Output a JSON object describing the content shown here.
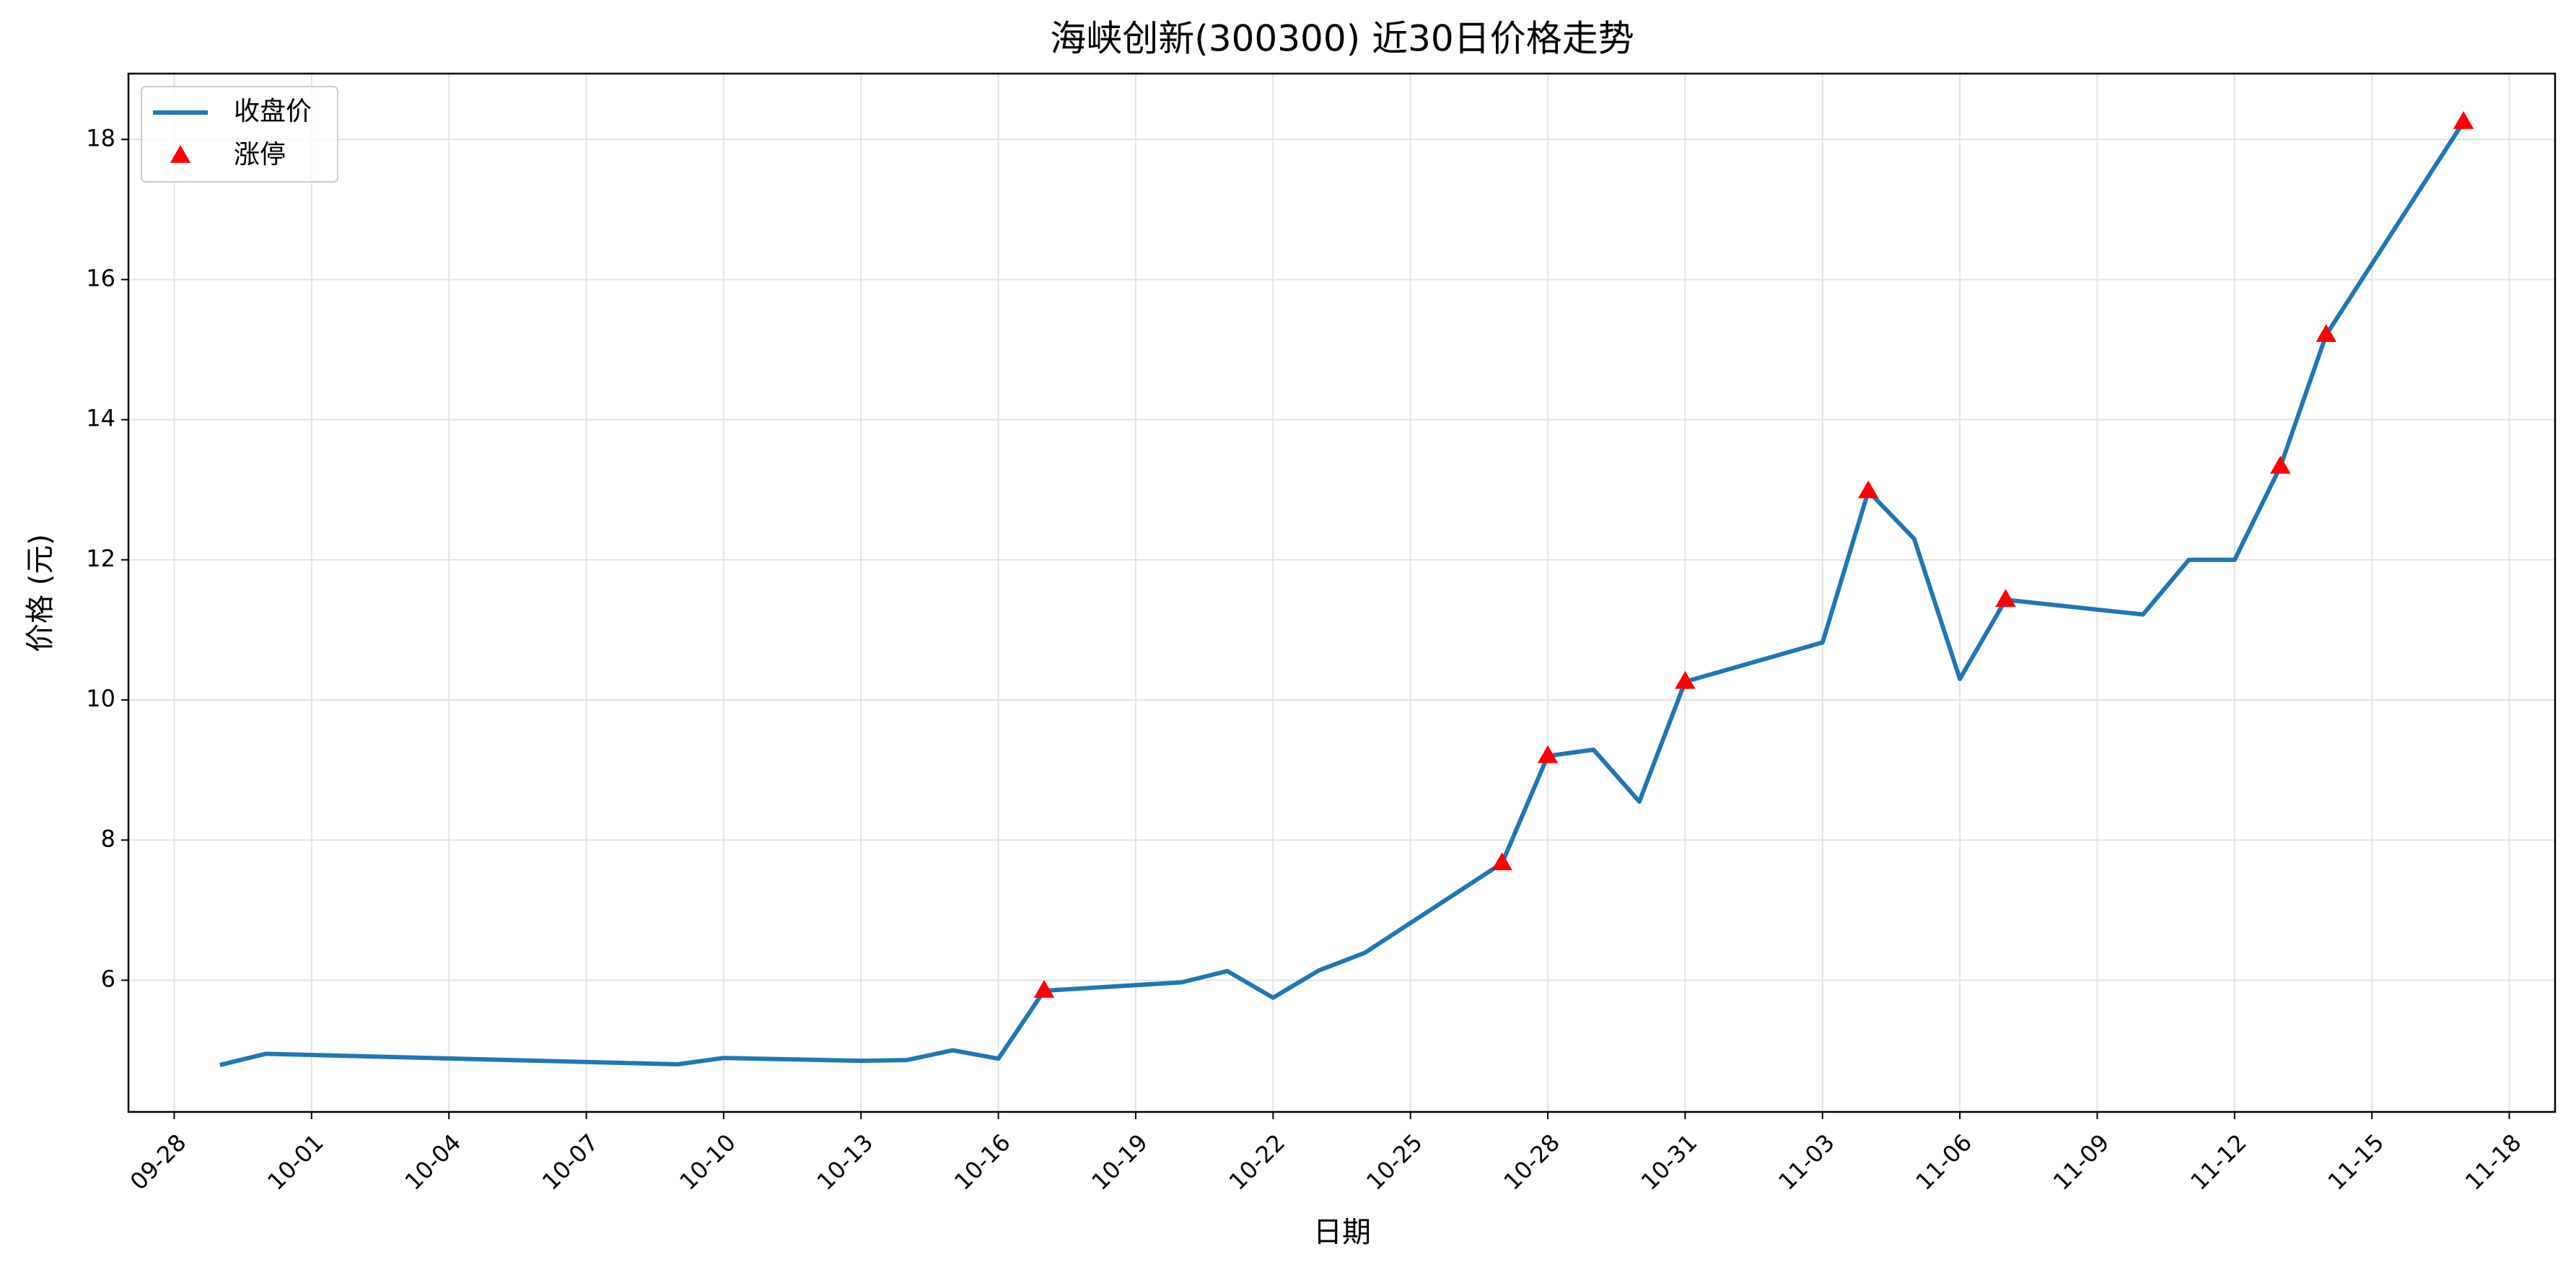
{
  "chart_data": {
    "type": "line",
    "title": "海峡创新(300300) 近30日价格走势",
    "xlabel": "日期",
    "ylabel": "价格 (元)",
    "xlim": [
      "09-27",
      "11-19"
    ],
    "xticks": [
      "09-28",
      "10-01",
      "10-04",
      "10-07",
      "10-10",
      "10-13",
      "10-16",
      "10-19",
      "10-22",
      "10-25",
      "10-28",
      "10-31",
      "11-03",
      "11-06",
      "11-09",
      "11-12",
      "11-15",
      "11-18"
    ],
    "ylim": [
      4.12,
      18.94
    ],
    "yticks": [
      6,
      8,
      10,
      12,
      14,
      16,
      18
    ],
    "grid": true,
    "legend": "upper left",
    "series": [
      {
        "name": "收盘价",
        "type": "line",
        "color": "#1f77b4",
        "x": [
          "09-29",
          "09-30",
          "10-09",
          "10-10",
          "10-13",
          "10-14",
          "10-15",
          "10-16",
          "10-17",
          "10-20",
          "10-21",
          "10-22",
          "10-23",
          "10-24",
          "10-27",
          "10-28",
          "10-29",
          "10-30",
          "10-31",
          "11-03",
          "11-04",
          "11-05",
          "11-06",
          "11-07",
          "11-10",
          "11-11",
          "11-12",
          "11-13",
          "11-14",
          "11-17"
        ],
        "values": [
          4.79,
          4.95,
          4.8,
          4.89,
          4.85,
          4.86,
          5.0,
          4.88,
          5.85,
          5.97,
          6.13,
          5.75,
          6.14,
          6.39,
          7.67,
          9.2,
          9.29,
          8.55,
          10.26,
          10.82,
          12.98,
          12.3,
          10.3,
          11.43,
          11.22,
          12.0,
          12.0,
          13.33,
          15.21,
          18.25
        ]
      },
      {
        "name": "涨停",
        "type": "scatter",
        "color": "#ff0000",
        "x": [
          "10-17",
          "10-27",
          "10-28",
          "10-31",
          "11-04",
          "11-07",
          "11-13",
          "11-14",
          "11-17"
        ],
        "values": [
          5.85,
          7.67,
          9.2,
          10.26,
          12.98,
          11.43,
          13.33,
          15.21,
          18.25
        ]
      }
    ]
  }
}
